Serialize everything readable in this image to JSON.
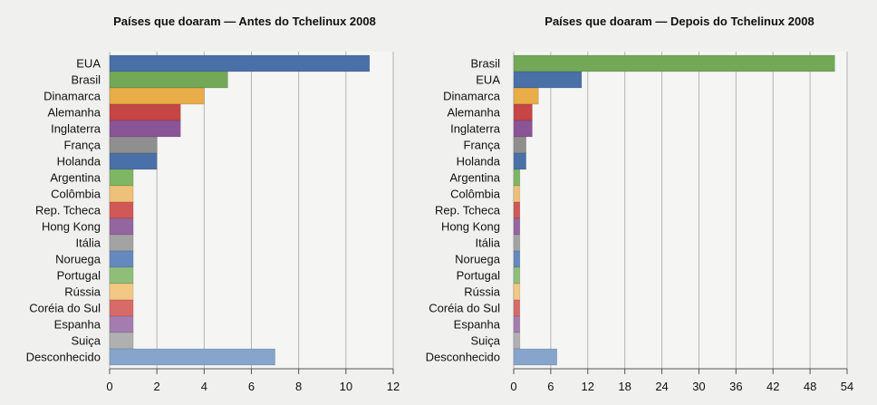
{
  "chart_data": [
    {
      "type": "bar",
      "orientation": "horizontal",
      "title": "Países que doaram — Antes do Tchelinux 2008",
      "xlabel": "",
      "ylabel": "",
      "xlim": [
        0,
        12
      ],
      "xticks": [
        0,
        2,
        4,
        6,
        8,
        10,
        12
      ],
      "grid": true,
      "categories": [
        "EUA",
        "Brasil",
        "Dinamarca",
        "Alemanha",
        "Inglaterra",
        "França",
        "Holanda",
        "Argentina",
        "Colômbia",
        "Rep. Tcheca",
        "Hong Kong",
        "Itália",
        "Noruega",
        "Portugal",
        "Rússia",
        "Coréia do Sul",
        "Espanha",
        "Suiça",
        "Desconhecido"
      ],
      "values": [
        11,
        5,
        4,
        3,
        3,
        2,
        2,
        1,
        1,
        1,
        1,
        1,
        1,
        1,
        1,
        1,
        1,
        1,
        7
      ],
      "colors": [
        "#4a70a8",
        "#73a857",
        "#e8ac48",
        "#c64545",
        "#8a5597",
        "#8f8f8f",
        "#4a70a8",
        "#7fb664",
        "#efc079",
        "#d25858",
        "#9466a0",
        "#a3a3a3",
        "#6688c0",
        "#8ebe78",
        "#f2c884",
        "#d86a6a",
        "#a47cb0",
        "#b0b0b0",
        "#86a4cc"
      ]
    },
    {
      "type": "bar",
      "orientation": "horizontal",
      "title": "Países que doaram — Depois do Tchelinux 2008",
      "xlabel": "",
      "ylabel": "",
      "xlim": [
        0,
        54
      ],
      "xticks": [
        0,
        6,
        12,
        18,
        24,
        30,
        36,
        42,
        48,
        54
      ],
      "grid": true,
      "categories": [
        "Brasil",
        "EUA",
        "Dinamarca",
        "Alemanha",
        "Inglaterra",
        "França",
        "Holanda",
        "Argentina",
        "Colômbia",
        "Rep. Tcheca",
        "Hong Kong",
        "Itália",
        "Noruega",
        "Portugal",
        "Rússia",
        "Coréia do Sul",
        "Espanha",
        "Suiça",
        "Desconhecido"
      ],
      "values": [
        52,
        11,
        4,
        3,
        3,
        2,
        2,
        1,
        1,
        1,
        1,
        1,
        1,
        1,
        1,
        1,
        1,
        1,
        7
      ],
      "colors": [
        "#73a857",
        "#4a70a8",
        "#e8ac48",
        "#c64545",
        "#8a5597",
        "#8f8f8f",
        "#4a70a8",
        "#7fb664",
        "#efc079",
        "#d25858",
        "#9466a0",
        "#a3a3a3",
        "#6688c0",
        "#8ebe78",
        "#f2c884",
        "#d86a6a",
        "#a47cb0",
        "#b0b0b0",
        "#86a4cc"
      ]
    }
  ]
}
